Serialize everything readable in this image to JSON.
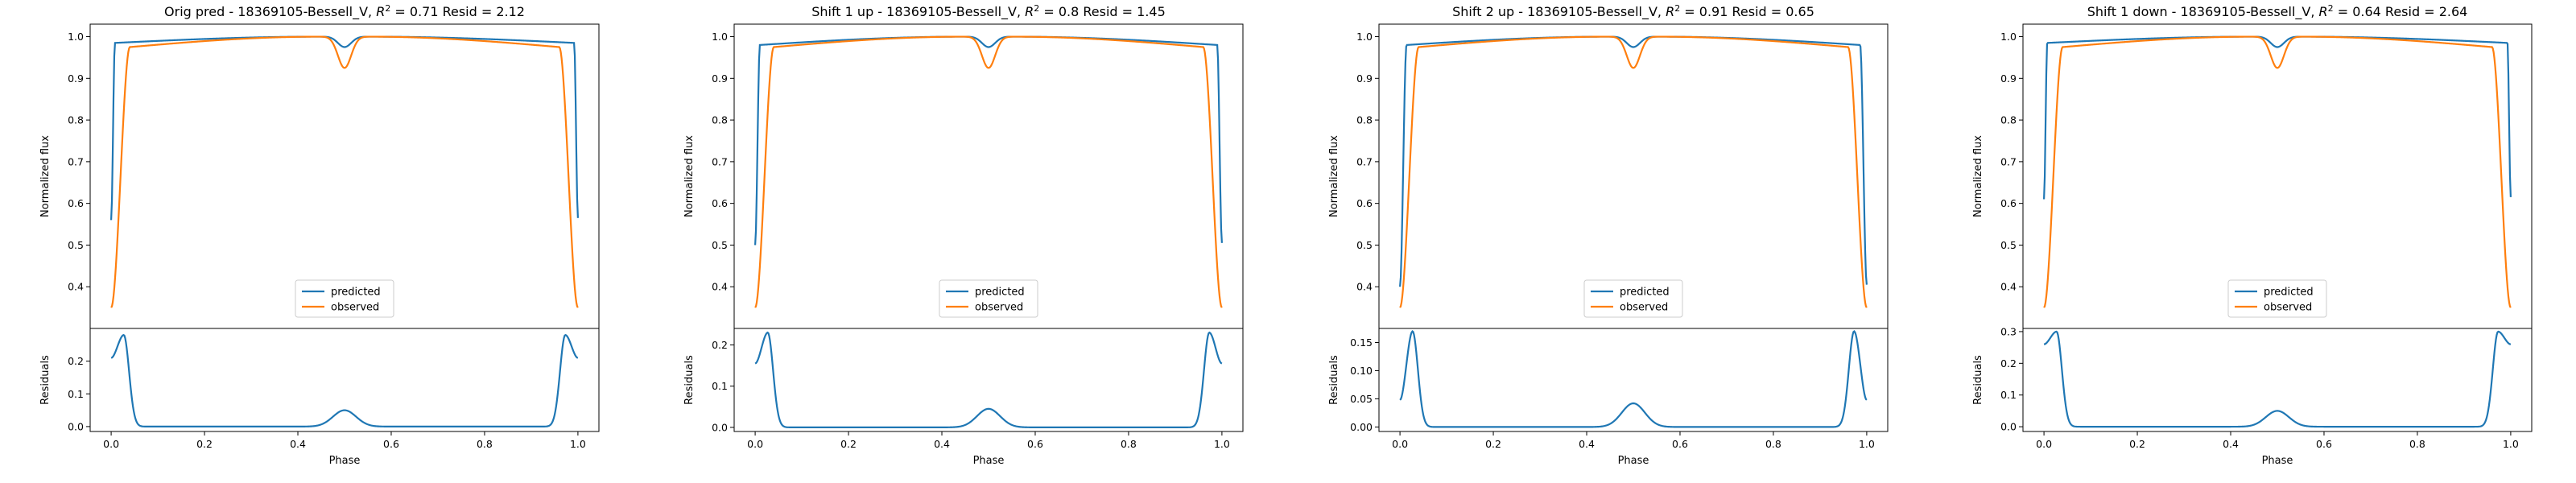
{
  "chart_data": [
    {
      "type": "line",
      "title": "Orig pred - 18369105-Bessell_V, $R^2 = 0.71$ Resid = 2.12",
      "title_parts": {
        "prefix": "Orig pred - 18369105-Bessell_V, ",
        "r2_var": "R",
        "r2_sup": "2",
        "r2_eq": " = 0.71",
        "suffix": " Resid = 2.12"
      },
      "top": {
        "ylabel": "Normalized flux",
        "ylim": [
          0.3,
          1.03
        ],
        "yticks": [
          "0.4",
          "0.5",
          "0.6",
          "0.7",
          "0.8",
          "0.9",
          "1.0"
        ],
        "legend_loc": "lower center",
        "series": [
          {
            "name": "predicted",
            "color": "#1f77b4",
            "edge_start": 0.56,
            "edge_end": 0.565,
            "plateau": 0.985,
            "dip": 0.975,
            "ingress": 0.008
          },
          {
            "name": "observed",
            "color": "#ff7f0e",
            "edge_start": 0.35,
            "edge_end": 0.35,
            "plateau": 0.975,
            "dip": 0.925,
            "ingress": 0.04
          }
        ]
      },
      "bottom": {
        "ylabel": "Residuals",
        "ylim": [
          -0.015,
          0.3
        ],
        "yticks": [
          "0.0",
          "0.1",
          "0.2"
        ],
        "peak": 0.28,
        "edge": 0.21,
        "mid_peak": 0.05
      },
      "xlabel": "Phase",
      "xticks": [
        "0.0",
        "0.2",
        "0.4",
        "0.6",
        "0.8",
        "1.0"
      ]
    },
    {
      "type": "line",
      "title": "Shift 1 up - 18369105-Bessell_V, $R^2 = 0.8$ Resid = 1.45",
      "title_parts": {
        "prefix": "Shift 1 up - 18369105-Bessell_V, ",
        "r2_var": "R",
        "r2_sup": "2",
        "r2_eq": " = 0.8",
        "suffix": " Resid = 1.45"
      },
      "top": {
        "ylabel": "Normalized flux",
        "ylim": [
          0.3,
          1.03
        ],
        "yticks": [
          "0.4",
          "0.5",
          "0.6",
          "0.7",
          "0.8",
          "0.9",
          "1.0"
        ],
        "legend_loc": "lower center",
        "series": [
          {
            "name": "predicted",
            "color": "#1f77b4",
            "edge_start": 0.5,
            "edge_end": 0.505,
            "plateau": 0.98,
            "dip": 0.975,
            "ingress": 0.01
          },
          {
            "name": "observed",
            "color": "#ff7f0e",
            "edge_start": 0.35,
            "edge_end": 0.35,
            "plateau": 0.975,
            "dip": 0.925,
            "ingress": 0.04
          }
        ]
      },
      "bottom": {
        "ylabel": "Residuals",
        "ylim": [
          -0.01,
          0.24
        ],
        "yticks": [
          "0.0",
          "0.1",
          "0.2"
        ],
        "peak": 0.23,
        "edge": 0.155,
        "mid_peak": 0.045
      },
      "xlabel": "Phase",
      "xticks": [
        "0.0",
        "0.2",
        "0.4",
        "0.6",
        "0.8",
        "1.0"
      ]
    },
    {
      "type": "line",
      "title": "Shift 2 up - 18369105-Bessell_V, $R^2 = 0.91$ Resid = 0.65",
      "title_parts": {
        "prefix": "Shift 2 up - 18369105-Bessell_V, ",
        "r2_var": "R",
        "r2_sup": "2",
        "r2_eq": " = 0.91",
        "suffix": " Resid = 0.65"
      },
      "top": {
        "ylabel": "Normalized flux",
        "ylim": [
          0.3,
          1.03
        ],
        "yticks": [
          "0.4",
          "0.5",
          "0.6",
          "0.7",
          "0.8",
          "0.9",
          "1.0"
        ],
        "legend_loc": "lower center",
        "series": [
          {
            "name": "predicted",
            "color": "#1f77b4",
            "edge_start": 0.4,
            "edge_end": 0.405,
            "plateau": 0.98,
            "dip": 0.975,
            "ingress": 0.014
          },
          {
            "name": "observed",
            "color": "#ff7f0e",
            "edge_start": 0.35,
            "edge_end": 0.35,
            "plateau": 0.975,
            "dip": 0.925,
            "ingress": 0.04
          }
        ]
      },
      "bottom": {
        "ylabel": "Residuals",
        "ylim": [
          -0.008,
          0.175
        ],
        "yticks": [
          "0.00",
          "0.05",
          "0.10",
          "0.15"
        ],
        "peak": 0.17,
        "edge": 0.048,
        "mid_peak": 0.042
      },
      "xlabel": "Phase",
      "xticks": [
        "0.0",
        "0.2",
        "0.4",
        "0.6",
        "0.8",
        "1.0"
      ]
    },
    {
      "type": "line",
      "title": "Shift 1 down - 18369105-Bessell_V, $R^2 = 0.64$ Resid = 2.64",
      "title_parts": {
        "prefix": "Shift 1 down - 18369105-Bessell_V, ",
        "r2_var": "R",
        "r2_sup": "2",
        "r2_eq": " = 0.64",
        "suffix": " Resid = 2.64"
      },
      "top": {
        "ylabel": "Normalized flux",
        "ylim": [
          0.3,
          1.03
        ],
        "yticks": [
          "0.4",
          "0.5",
          "0.6",
          "0.7",
          "0.8",
          "0.9",
          "1.0"
        ],
        "legend_loc": "lower center",
        "series": [
          {
            "name": "predicted",
            "color": "#1f77b4",
            "edge_start": 0.61,
            "edge_end": 0.615,
            "plateau": 0.985,
            "dip": 0.975,
            "ingress": 0.007
          },
          {
            "name": "observed",
            "color": "#ff7f0e",
            "edge_start": 0.35,
            "edge_end": 0.35,
            "plateau": 0.975,
            "dip": 0.925,
            "ingress": 0.04
          }
        ]
      },
      "bottom": {
        "ylabel": "Residuals",
        "ylim": [
          -0.015,
          0.31
        ],
        "yticks": [
          "0.0",
          "0.1",
          "0.2",
          "0.3"
        ],
        "peak": 0.3,
        "edge": 0.26,
        "mid_peak": 0.05
      },
      "xlabel": "Phase",
      "xticks": [
        "0.0",
        "0.2",
        "0.4",
        "0.6",
        "0.8",
        "1.0"
      ]
    }
  ]
}
